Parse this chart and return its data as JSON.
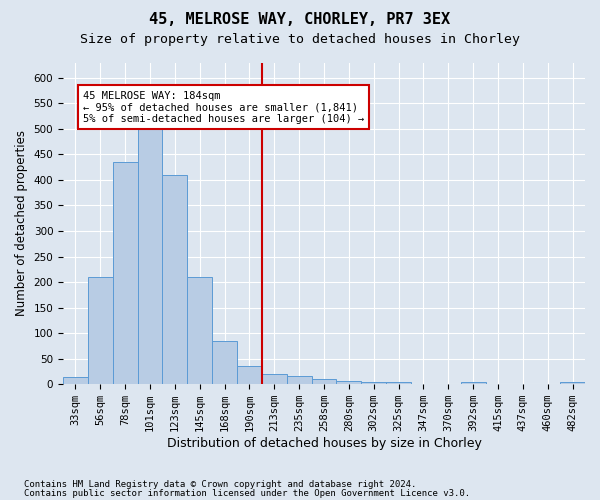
{
  "title1": "45, MELROSE WAY, CHORLEY, PR7 3EX",
  "title2": "Size of property relative to detached houses in Chorley",
  "xlabel": "Distribution of detached houses by size in Chorley",
  "ylabel": "Number of detached properties",
  "bar_color": "#b8cce4",
  "bar_edge_color": "#5b9bd5",
  "bin_labels": [
    "33sqm",
    "56sqm",
    "78sqm",
    "101sqm",
    "123sqm",
    "145sqm",
    "168sqm",
    "190sqm",
    "213sqm",
    "235sqm",
    "258sqm",
    "280sqm",
    "302sqm",
    "325sqm",
    "347sqm",
    "370sqm",
    "392sqm",
    "415sqm",
    "437sqm",
    "460sqm",
    "482sqm"
  ],
  "bar_values": [
    15,
    210,
    435,
    500,
    410,
    210,
    85,
    35,
    20,
    17,
    11,
    6,
    5,
    5,
    0,
    0,
    5,
    0,
    0,
    0,
    5
  ],
  "vline_pos": 7.5,
  "vline_color": "#cc0000",
  "annotation_title": "45 MELROSE WAY: 184sqm",
  "annotation_line1": "← 95% of detached houses are smaller (1,841)",
  "annotation_line2": "5% of semi-detached houses are larger (104) →",
  "annotation_box_color": "#ffffff",
  "annotation_box_edge": "#cc0000",
  "ylim": [
    0,
    630
  ],
  "yticks": [
    0,
    50,
    100,
    150,
    200,
    250,
    300,
    350,
    400,
    450,
    500,
    550,
    600
  ],
  "footnote1": "Contains HM Land Registry data © Crown copyright and database right 2024.",
  "footnote2": "Contains public sector information licensed under the Open Government Licence v3.0.",
  "background_color": "#dde6f0",
  "plot_bg_color": "#dde6f0",
  "grid_color": "#ffffff",
  "title1_fontsize": 11,
  "title2_fontsize": 9.5,
  "xlabel_fontsize": 9,
  "ylabel_fontsize": 8.5,
  "tick_fontsize": 7.5,
  "footnote_fontsize": 6.5
}
